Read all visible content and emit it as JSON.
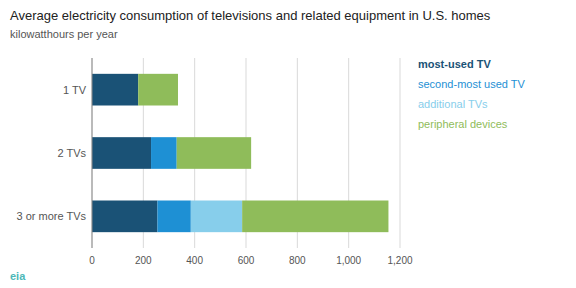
{
  "chart_data": {
    "type": "bar",
    "orientation": "horizontal",
    "stacked": true,
    "title": "Average electricity consumption of televisions and related equipment in U.S. homes",
    "subtitle": "kilowatthours per year",
    "categories": [
      "3 or more TVs",
      "2 TVs",
      "1 TV"
    ],
    "series": [
      {
        "name": "most-used TV",
        "color": "#1a5276",
        "values": [
          255,
          230,
          180
        ]
      },
      {
        "name": "second-most used TV",
        "color": "#1e90d4",
        "values": [
          130,
          100,
          0
        ]
      },
      {
        "name": "additional TVs",
        "color": "#87ceeb",
        "values": [
          200,
          0,
          0
        ]
      },
      {
        "name": "peripheral devices",
        "color": "#8fbc5a",
        "values": [
          570,
          290,
          155
        ]
      }
    ],
    "xlim": [
      0,
      1200
    ],
    "xticks": [
      0,
      200,
      400,
      600,
      800,
      {
        "value": 1000,
        "label": "1,000"
      },
      {
        "value": 1200,
        "label": "1,200"
      }
    ],
    "grid": true,
    "legend": "right",
    "annotations": [
      "eia"
    ]
  }
}
